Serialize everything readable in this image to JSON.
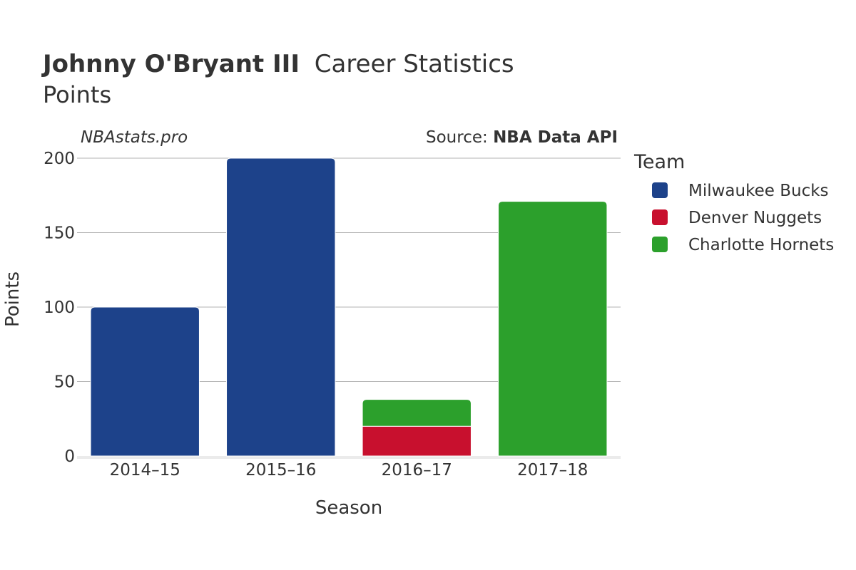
{
  "header": {
    "title_bold": "Johnny O'Bryant III",
    "title_rest": "Career Statistics",
    "subtitle": "Points"
  },
  "watermark": "NBAstats.pro",
  "source": {
    "prefix": "Source: ",
    "name": "NBA Data API"
  },
  "legend": {
    "title": "Team",
    "placement": "right"
  },
  "chart_data": {
    "type": "bar",
    "stacked": true,
    "title": "Johnny O'Bryant III Career Statistics",
    "subtitle": "Points",
    "xlabel": "Season",
    "ylabel": "Points",
    "categories": [
      "2014–15",
      "2015–16",
      "2016–17",
      "2017–18"
    ],
    "ylim": [
      0,
      200
    ],
    "yticks": [
      0,
      50,
      100,
      150,
      200
    ],
    "grid": true,
    "series": [
      {
        "name": "Milwaukee Bucks",
        "color": "#1d428a",
        "values": [
          100,
          200,
          0,
          0
        ]
      },
      {
        "name": "Denver Nuggets",
        "color": "#c8102e",
        "values": [
          0,
          0,
          20,
          0
        ]
      },
      {
        "name": "Charlotte Hornets",
        "color": "#2ca02c",
        "values": [
          0,
          0,
          18,
          171
        ]
      }
    ]
  }
}
